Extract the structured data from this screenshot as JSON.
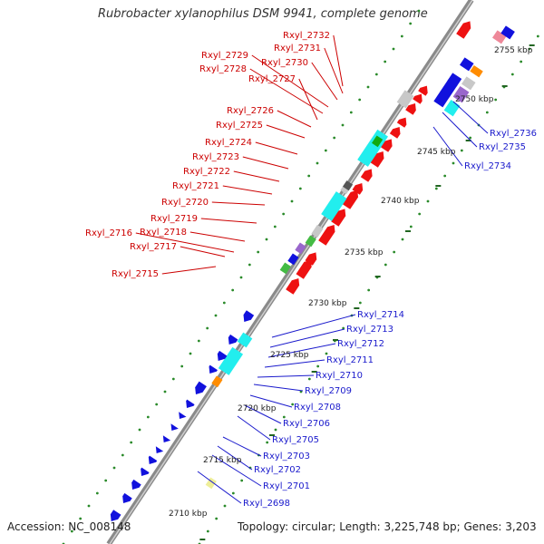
{
  "title": "Rubrobacter xylanophilus DSM 9941, complete genome",
  "footer": {
    "accession": "Accession: NC_008148",
    "summary": "Topology: circular; Length: 3,225,748 bp; Genes: 3,203"
  },
  "kbp_ticks": [
    "2755 kbp",
    "2750 kbp",
    "2745 kbp",
    "2740 kbp",
    "2735 kbp",
    "2730 kbp",
    "2725 kbp",
    "2720 kbp",
    "2715 kbp",
    "2710 kbp"
  ],
  "forward_genes": [
    "Rxyl_2732",
    "Rxyl_2731",
    "Rxyl_2730",
    "Rxyl_2729",
    "Rxyl_2728",
    "Rxyl_2727",
    "Rxyl_2726",
    "Rxyl_2725",
    "Rxyl_2724",
    "Rxyl_2723",
    "Rxyl_2722",
    "Rxyl_2721",
    "Rxyl_2720",
    "Rxyl_2719",
    "Rxyl_2718",
    "Rxyl_2716",
    "Rxyl_2717",
    "Rxyl_2715"
  ],
  "reverse_genes_upper": [
    "Rxyl_2736",
    "Rxyl_2735",
    "Rxyl_2734"
  ],
  "reverse_genes_lower": [
    "Rxyl_2714",
    "Rxyl_2713",
    "Rxyl_2712",
    "Rxyl_2711",
    "Rxyl_2710",
    "Rxyl_2709",
    "Rxyl_2708",
    "Rxyl_2706",
    "Rxyl_2705",
    "Rxyl_2703",
    "Rxyl_2702",
    "Rxyl_2701",
    "Rxyl_2698"
  ],
  "colors": {
    "forward": "#ee1111",
    "reverse": "#1111dd",
    "label_forward": "#cc0000",
    "label_reverse": "#1a1acc",
    "backbone": "#888888",
    "tick_dot": "#2a8a2a",
    "cyan": "#22eeee",
    "gray": "#c8c8c8",
    "orange": "#ff8c00",
    "green": "#44bb44",
    "purple": "#9966cc",
    "khaki": "#eeee99"
  }
}
